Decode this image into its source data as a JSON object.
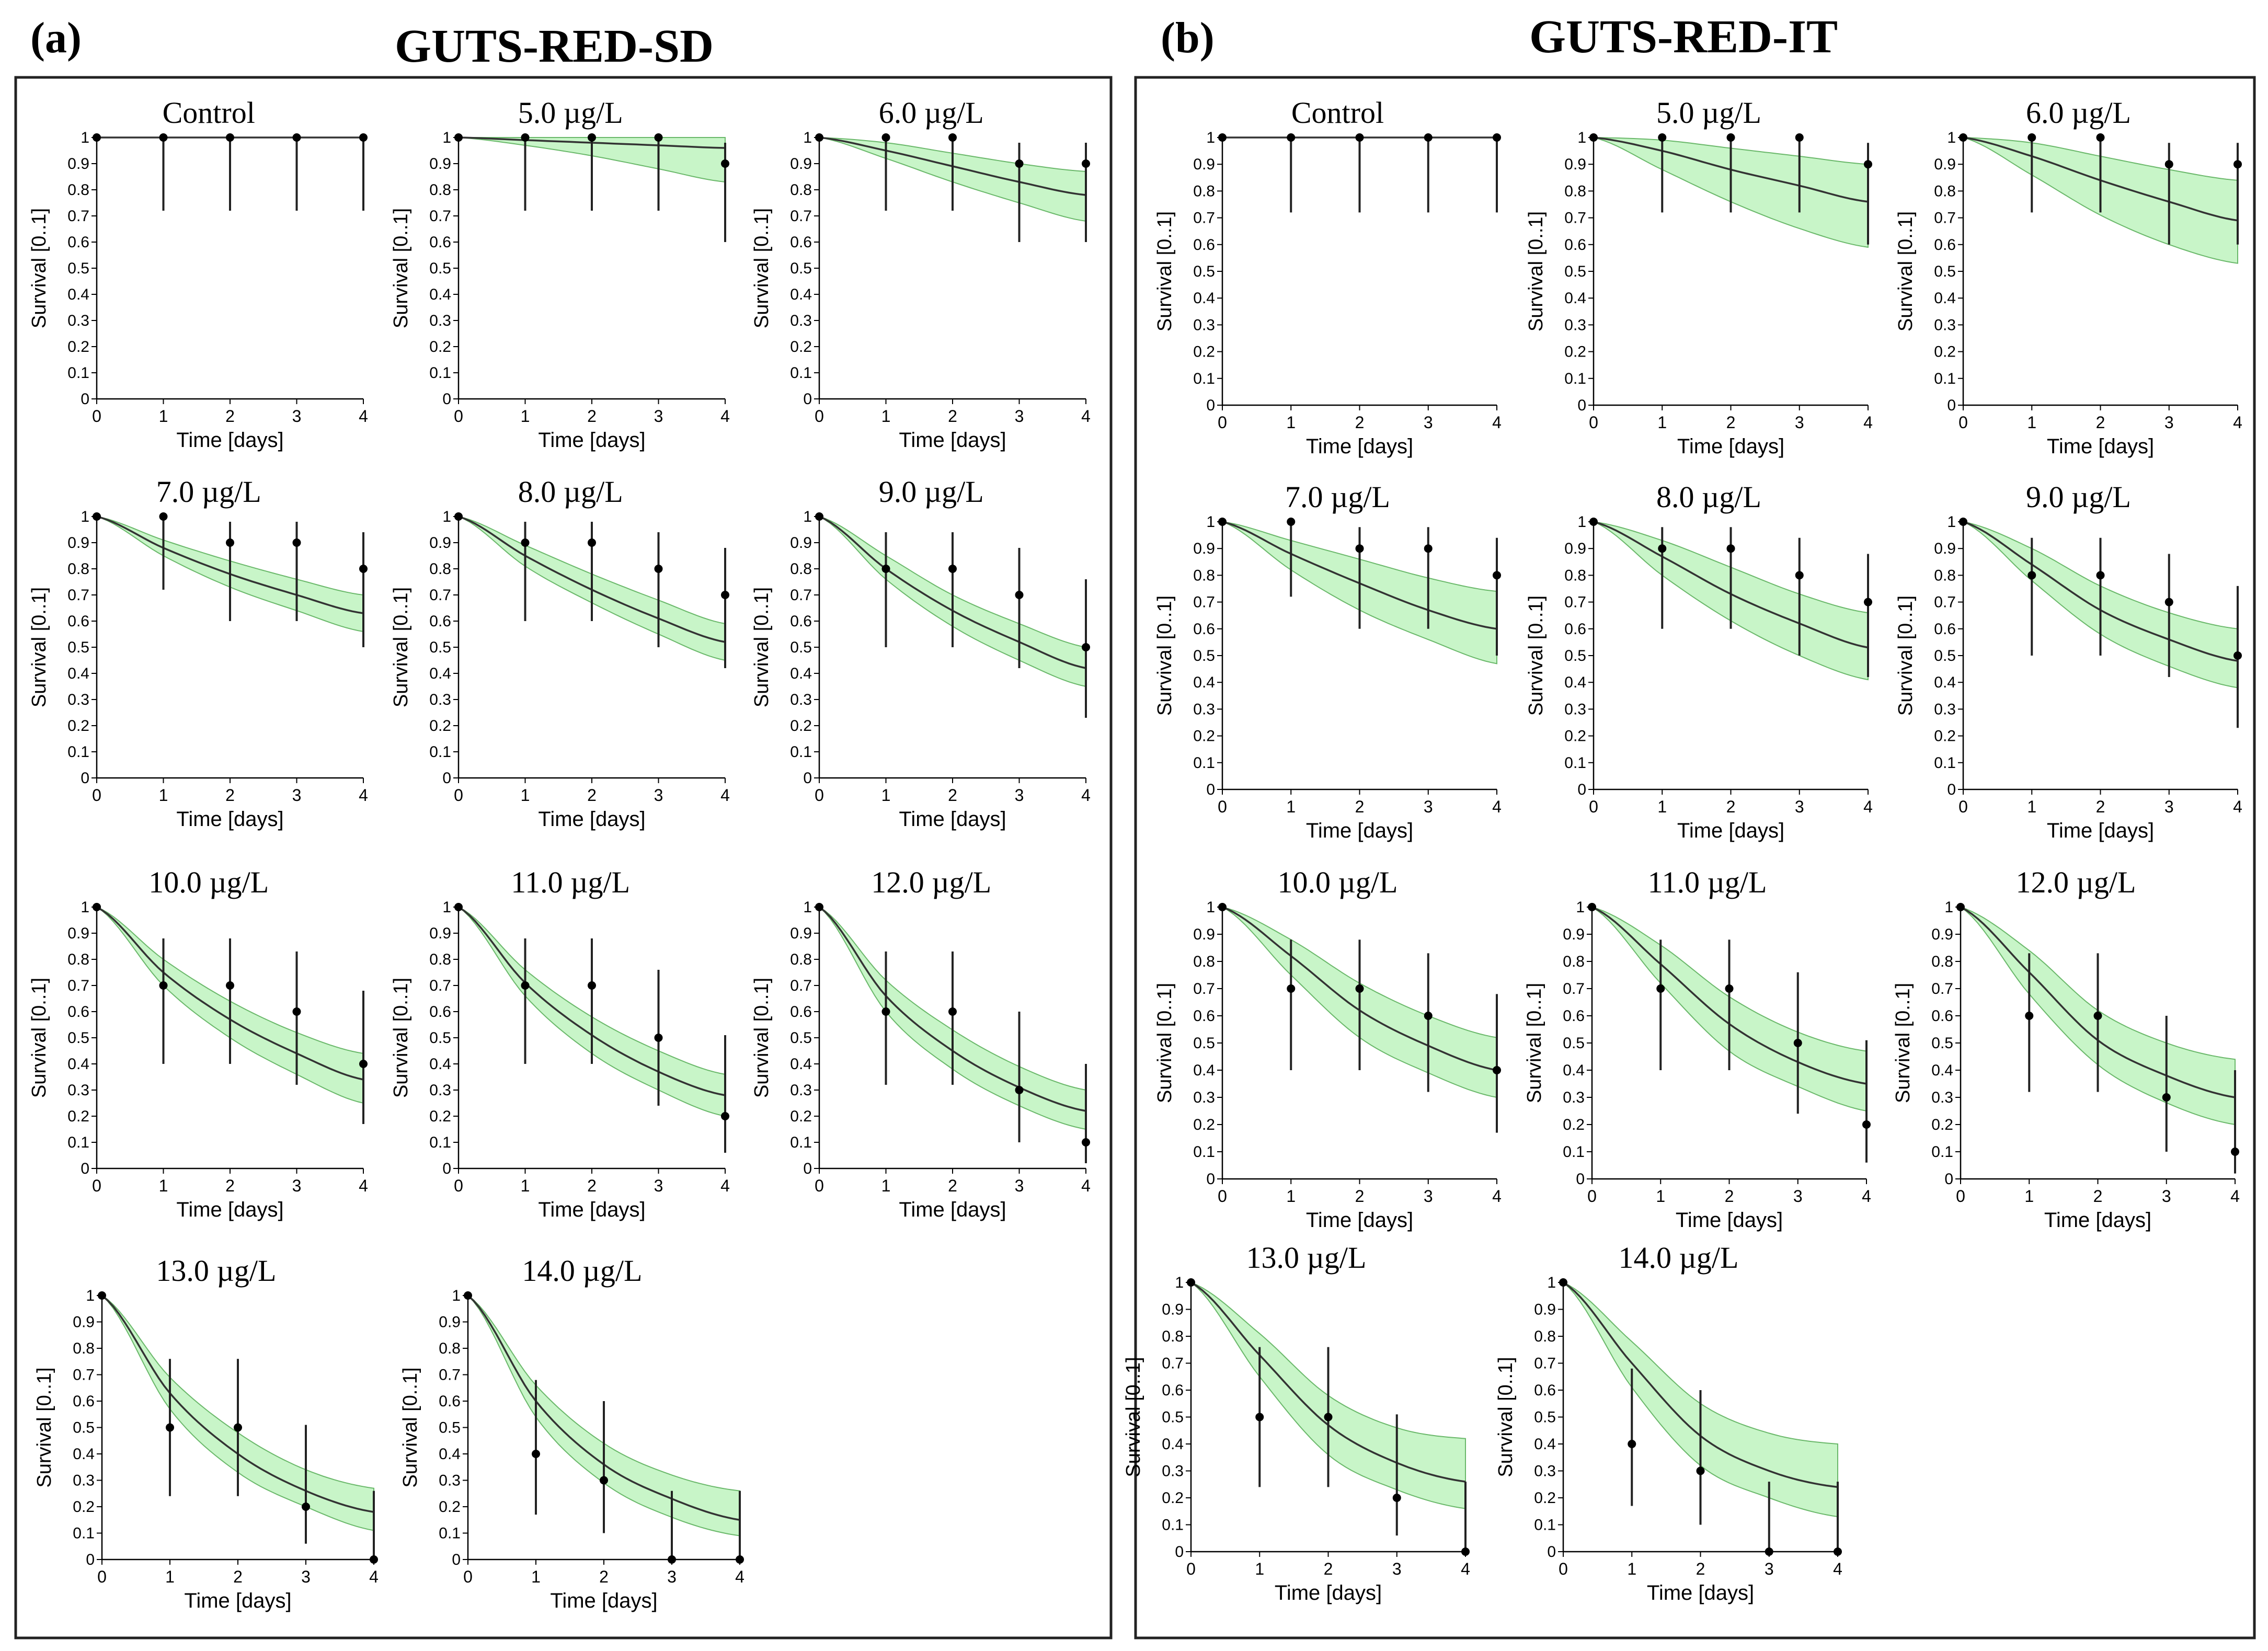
{
  "figure": {
    "panels": [
      {
        "letter": "(a)",
        "title": "GUTS-RED-SD"
      },
      {
        "letter": "(b)",
        "title": "GUTS-RED-IT"
      }
    ]
  },
  "chart_data": [
    {
      "type": "line",
      "panel": "a",
      "title": "Control",
      "xlabel": "Time [days]",
      "ylabel": "Survival [0..1]",
      "xlim": [
        0,
        4
      ],
      "ylim": [
        0,
        1
      ],
      "x": [
        0,
        1,
        2,
        3,
        4
      ],
      "observed": [
        1.0,
        1.0,
        1.0,
        1.0,
        1.0
      ],
      "ci_low": [
        1.0,
        0.72,
        0.72,
        0.72,
        0.72
      ],
      "ci_high": [
        1.0,
        1.0,
        1.0,
        1.0,
        1.0
      ],
      "fit": [
        1.0,
        1.0,
        1.0,
        1.0,
        1.0
      ],
      "band_low": [
        1.0,
        1.0,
        1.0,
        1.0,
        1.0
      ],
      "band_high": [
        1.0,
        1.0,
        1.0,
        1.0,
        1.0
      ]
    },
    {
      "type": "line",
      "panel": "a",
      "title": "5.0 µg/L",
      "xlabel": "Time [days]",
      "ylabel": "Survival [0..1]",
      "xlim": [
        0,
        4
      ],
      "ylim": [
        0,
        1
      ],
      "x": [
        0,
        1,
        2,
        3,
        4
      ],
      "observed": [
        1.0,
        1.0,
        1.0,
        1.0,
        0.9
      ],
      "ci_low": [
        1.0,
        0.72,
        0.72,
        0.72,
        0.6
      ],
      "ci_high": [
        1.0,
        1.0,
        1.0,
        1.0,
        0.98
      ],
      "fit": [
        1.0,
        0.99,
        0.98,
        0.97,
        0.96
      ],
      "band_low": [
        1.0,
        0.97,
        0.93,
        0.88,
        0.83
      ],
      "band_high": [
        1.0,
        1.0,
        1.0,
        1.0,
        1.0
      ]
    },
    {
      "type": "line",
      "panel": "a",
      "title": "6.0 µg/L",
      "xlabel": "Time [days]",
      "ylabel": "Survival [0..1]",
      "xlim": [
        0,
        4
      ],
      "ylim": [
        0,
        1
      ],
      "x": [
        0,
        1,
        2,
        3,
        4
      ],
      "observed": [
        1.0,
        1.0,
        1.0,
        0.9,
        0.9
      ],
      "ci_low": [
        1.0,
        0.72,
        0.72,
        0.6,
        0.6
      ],
      "ci_high": [
        1.0,
        1.0,
        1.0,
        0.98,
        0.98
      ],
      "fit": [
        1.0,
        0.95,
        0.89,
        0.83,
        0.78
      ],
      "band_low": [
        1.0,
        0.92,
        0.83,
        0.75,
        0.68
      ],
      "band_high": [
        1.0,
        0.98,
        0.94,
        0.9,
        0.87
      ]
    },
    {
      "type": "line",
      "panel": "a",
      "title": "7.0 µg/L",
      "xlabel": "Time [days]",
      "ylabel": "Survival [0..1]",
      "xlim": [
        0,
        4
      ],
      "ylim": [
        0,
        1
      ],
      "x": [
        0,
        1,
        2,
        3,
        4
      ],
      "observed": [
        1.0,
        1.0,
        0.9,
        0.9,
        0.8
      ],
      "ci_low": [
        1.0,
        0.72,
        0.6,
        0.6,
        0.5
      ],
      "ci_high": [
        1.0,
        1.0,
        0.98,
        0.98,
        0.94
      ],
      "fit": [
        1.0,
        0.88,
        0.78,
        0.7,
        0.63
      ],
      "band_low": [
        1.0,
        0.85,
        0.73,
        0.64,
        0.56
      ],
      "band_high": [
        1.0,
        0.91,
        0.83,
        0.76,
        0.7
      ]
    },
    {
      "type": "line",
      "panel": "a",
      "title": "8.0 µg/L",
      "xlabel": "Time [days]",
      "ylabel": "Survival [0..1]",
      "xlim": [
        0,
        4
      ],
      "ylim": [
        0,
        1
      ],
      "x": [
        0,
        1,
        2,
        3,
        4
      ],
      "observed": [
        1.0,
        0.9,
        0.9,
        0.8,
        0.7
      ],
      "ci_low": [
        1.0,
        0.6,
        0.6,
        0.5,
        0.42
      ],
      "ci_high": [
        1.0,
        0.98,
        0.98,
        0.94,
        0.88
      ],
      "fit": [
        1.0,
        0.85,
        0.72,
        0.61,
        0.52
      ],
      "band_low": [
        1.0,
        0.81,
        0.67,
        0.55,
        0.45
      ],
      "band_high": [
        1.0,
        0.89,
        0.78,
        0.68,
        0.59
      ]
    },
    {
      "type": "line",
      "panel": "a",
      "title": "9.0 µg/L",
      "xlabel": "Time [days]",
      "ylabel": "Survival [0..1]",
      "xlim": [
        0,
        4
      ],
      "ylim": [
        0,
        1
      ],
      "x": [
        0,
        1,
        2,
        3,
        4
      ],
      "observed": [
        1.0,
        0.8,
        0.8,
        0.7,
        0.5
      ],
      "ci_low": [
        1.0,
        0.5,
        0.5,
        0.42,
        0.23
      ],
      "ci_high": [
        1.0,
        0.94,
        0.94,
        0.88,
        0.76
      ],
      "fit": [
        1.0,
        0.8,
        0.64,
        0.52,
        0.42
      ],
      "band_low": [
        1.0,
        0.76,
        0.58,
        0.45,
        0.35
      ],
      "band_high": [
        1.0,
        0.85,
        0.7,
        0.59,
        0.5
      ]
    },
    {
      "type": "line",
      "panel": "a",
      "title": "10.0 µg/L",
      "xlabel": "Time [days]",
      "ylabel": "Survival [0..1]",
      "xlim": [
        0,
        4
      ],
      "ylim": [
        0,
        1
      ],
      "x": [
        0,
        1,
        2,
        3,
        4
      ],
      "observed": [
        1.0,
        0.7,
        0.7,
        0.6,
        0.4
      ],
      "ci_low": [
        1.0,
        0.4,
        0.4,
        0.32,
        0.17
      ],
      "ci_high": [
        1.0,
        0.88,
        0.88,
        0.83,
        0.68
      ],
      "fit": [
        1.0,
        0.75,
        0.57,
        0.44,
        0.34
      ],
      "band_low": [
        1.0,
        0.7,
        0.5,
        0.36,
        0.25
      ],
      "band_high": [
        1.0,
        0.8,
        0.64,
        0.52,
        0.44
      ]
    },
    {
      "type": "line",
      "panel": "a",
      "title": "11.0 µg/L",
      "xlabel": "Time [days]",
      "ylabel": "Survival [0..1]",
      "xlim": [
        0,
        4
      ],
      "ylim": [
        0,
        1
      ],
      "x": [
        0,
        1,
        2,
        3,
        4
      ],
      "observed": [
        1.0,
        0.7,
        0.7,
        0.5,
        0.2
      ],
      "ci_low": [
        1.0,
        0.4,
        0.4,
        0.24,
        0.06
      ],
      "ci_high": [
        1.0,
        0.88,
        0.88,
        0.76,
        0.51
      ],
      "fit": [
        1.0,
        0.71,
        0.51,
        0.37,
        0.28
      ],
      "band_low": [
        1.0,
        0.66,
        0.44,
        0.3,
        0.2
      ],
      "band_high": [
        1.0,
        0.76,
        0.58,
        0.45,
        0.36
      ]
    },
    {
      "type": "line",
      "panel": "a",
      "title": "12.0 µg/L",
      "xlabel": "Time [days]",
      "ylabel": "Survival [0..1]",
      "xlim": [
        0,
        4
      ],
      "ylim": [
        0,
        1
      ],
      "x": [
        0,
        1,
        2,
        3,
        4
      ],
      "observed": [
        1.0,
        0.6,
        0.6,
        0.3,
        0.1
      ],
      "ci_low": [
        1.0,
        0.32,
        0.32,
        0.1,
        0.02
      ],
      "ci_high": [
        1.0,
        0.83,
        0.83,
        0.6,
        0.4
      ],
      "fit": [
        1.0,
        0.66,
        0.45,
        0.31,
        0.22
      ],
      "band_low": [
        1.0,
        0.6,
        0.38,
        0.24,
        0.15
      ],
      "band_high": [
        1.0,
        0.72,
        0.53,
        0.39,
        0.3
      ]
    },
    {
      "type": "line",
      "panel": "a",
      "title": "13.0 µg/L",
      "xlabel": "Time [days]",
      "ylabel": "Survival [0..1]",
      "xlim": [
        0,
        4
      ],
      "ylim": [
        0,
        1
      ],
      "x": [
        0,
        1,
        2,
        3,
        4
      ],
      "observed": [
        1.0,
        0.5,
        0.5,
        0.2,
        0.0
      ],
      "ci_low": [
        1.0,
        0.24,
        0.24,
        0.06,
        0.0
      ],
      "ci_high": [
        1.0,
        0.76,
        0.76,
        0.51,
        0.26
      ],
      "fit": [
        1.0,
        0.63,
        0.4,
        0.26,
        0.18
      ],
      "band_low": [
        1.0,
        0.57,
        0.33,
        0.2,
        0.11
      ],
      "band_high": [
        1.0,
        0.69,
        0.48,
        0.34,
        0.27
      ]
    },
    {
      "type": "line",
      "panel": "a",
      "title": "14.0 µg/L",
      "xlabel": "Time [days]",
      "ylabel": "Survival [0..1]",
      "xlim": [
        0,
        4
      ],
      "ylim": [
        0,
        1
      ],
      "x": [
        0,
        1,
        2,
        3,
        4
      ],
      "observed": [
        1.0,
        0.4,
        0.3,
        0.0,
        0.0
      ],
      "ci_low": [
        1.0,
        0.17,
        0.1,
        0.0,
        0.0
      ],
      "ci_high": [
        1.0,
        0.68,
        0.6,
        0.26,
        0.26
      ],
      "fit": [
        1.0,
        0.6,
        0.36,
        0.23,
        0.15
      ],
      "band_low": [
        1.0,
        0.54,
        0.29,
        0.16,
        0.09
      ],
      "band_high": [
        1.0,
        0.66,
        0.44,
        0.32,
        0.26
      ]
    },
    {
      "type": "line",
      "panel": "b",
      "title": "Control",
      "xlabel": "Time [days]",
      "ylabel": "Survival [0..1]",
      "xlim": [
        0,
        4
      ],
      "ylim": [
        0,
        1
      ],
      "x": [
        0,
        1,
        2,
        3,
        4
      ],
      "observed": [
        1.0,
        1.0,
        1.0,
        1.0,
        1.0
      ],
      "ci_low": [
        1.0,
        0.72,
        0.72,
        0.72,
        0.72
      ],
      "ci_high": [
        1.0,
        1.0,
        1.0,
        1.0,
        1.0
      ],
      "fit": [
        1.0,
        1.0,
        1.0,
        1.0,
        1.0
      ],
      "band_low": [
        1.0,
        1.0,
        1.0,
        1.0,
        1.0
      ],
      "band_high": [
        1.0,
        1.0,
        1.0,
        1.0,
        1.0
      ]
    },
    {
      "type": "line",
      "panel": "b",
      "title": "5.0 µg/L",
      "xlabel": "Time [days]",
      "ylabel": "Survival [0..1]",
      "xlim": [
        0,
        4
      ],
      "ylim": [
        0,
        1
      ],
      "x": [
        0,
        1,
        2,
        3,
        4
      ],
      "observed": [
        1.0,
        1.0,
        1.0,
        1.0,
        0.9
      ],
      "ci_low": [
        1.0,
        0.72,
        0.72,
        0.72,
        0.6
      ],
      "ci_high": [
        1.0,
        1.0,
        1.0,
        1.0,
        0.98
      ],
      "fit": [
        1.0,
        0.95,
        0.88,
        0.82,
        0.76
      ],
      "band_low": [
        1.0,
        0.88,
        0.76,
        0.66,
        0.59
      ],
      "band_high": [
        1.0,
        0.99,
        0.96,
        0.93,
        0.9
      ]
    },
    {
      "type": "line",
      "panel": "b",
      "title": "6.0 µg/L",
      "xlabel": "Time [days]",
      "ylabel": "Survival [0..1]",
      "xlim": [
        0,
        4
      ],
      "ylim": [
        0,
        1
      ],
      "x": [
        0,
        1,
        2,
        3,
        4
      ],
      "observed": [
        1.0,
        1.0,
        1.0,
        0.9,
        0.9
      ],
      "ci_low": [
        1.0,
        0.72,
        0.72,
        0.6,
        0.6
      ],
      "ci_high": [
        1.0,
        1.0,
        1.0,
        0.98,
        0.98
      ],
      "fit": [
        1.0,
        0.93,
        0.84,
        0.76,
        0.69
      ],
      "band_low": [
        1.0,
        0.86,
        0.71,
        0.6,
        0.53
      ],
      "band_high": [
        1.0,
        0.98,
        0.93,
        0.88,
        0.84
      ]
    },
    {
      "type": "line",
      "panel": "b",
      "title": "7.0 µg/L",
      "xlabel": "Time [days]",
      "ylabel": "Survival [0..1]",
      "xlim": [
        0,
        4
      ],
      "ylim": [
        0,
        1
      ],
      "x": [
        0,
        1,
        2,
        3,
        4
      ],
      "observed": [
        1.0,
        1.0,
        0.9,
        0.9,
        0.8
      ],
      "ci_low": [
        1.0,
        0.72,
        0.6,
        0.6,
        0.5
      ],
      "ci_high": [
        1.0,
        1.0,
        0.98,
        0.98,
        0.94
      ],
      "fit": [
        1.0,
        0.88,
        0.77,
        0.67,
        0.6
      ],
      "band_low": [
        1.0,
        0.82,
        0.67,
        0.56,
        0.47
      ],
      "band_high": [
        1.0,
        0.93,
        0.86,
        0.79,
        0.74
      ]
    },
    {
      "type": "line",
      "panel": "b",
      "title": "8.0 µg/L",
      "xlabel": "Time [days]",
      "ylabel": "Survival [0..1]",
      "xlim": [
        0,
        4
      ],
      "ylim": [
        0,
        1
      ],
      "x": [
        0,
        1,
        2,
        3,
        4
      ],
      "observed": [
        1.0,
        0.9,
        0.9,
        0.8,
        0.7
      ],
      "ci_low": [
        1.0,
        0.6,
        0.6,
        0.5,
        0.42
      ],
      "ci_high": [
        1.0,
        0.98,
        0.98,
        0.94,
        0.88
      ],
      "fit": [
        1.0,
        0.87,
        0.73,
        0.62,
        0.53
      ],
      "band_low": [
        1.0,
        0.8,
        0.63,
        0.5,
        0.41
      ],
      "band_high": [
        1.0,
        0.93,
        0.83,
        0.73,
        0.66
      ]
    },
    {
      "type": "line",
      "panel": "b",
      "title": "9.0 µg/L",
      "xlabel": "Time [days]",
      "ylabel": "Survival [0..1]",
      "xlim": [
        0,
        4
      ],
      "ylim": [
        0,
        1
      ],
      "x": [
        0,
        1,
        2,
        3,
        4
      ],
      "observed": [
        1.0,
        0.8,
        0.8,
        0.7,
        0.5
      ],
      "ci_low": [
        1.0,
        0.5,
        0.5,
        0.42,
        0.23
      ],
      "ci_high": [
        1.0,
        0.94,
        0.94,
        0.88,
        0.76
      ],
      "fit": [
        1.0,
        0.84,
        0.67,
        0.56,
        0.48
      ],
      "band_low": [
        1.0,
        0.78,
        0.58,
        0.46,
        0.38
      ],
      "band_high": [
        1.0,
        0.9,
        0.76,
        0.66,
        0.6
      ]
    },
    {
      "type": "line",
      "panel": "b",
      "title": "10.0 µg/L",
      "xlabel": "Time [days]",
      "ylabel": "Survival [0..1]",
      "xlim": [
        0,
        4
      ],
      "ylim": [
        0,
        1
      ],
      "x": [
        0,
        1,
        2,
        3,
        4
      ],
      "observed": [
        1.0,
        0.7,
        0.7,
        0.6,
        0.4
      ],
      "ci_low": [
        1.0,
        0.4,
        0.4,
        0.32,
        0.17
      ],
      "ci_high": [
        1.0,
        0.88,
        0.88,
        0.83,
        0.68
      ],
      "fit": [
        1.0,
        0.82,
        0.62,
        0.49,
        0.4
      ],
      "band_low": [
        1.0,
        0.75,
        0.52,
        0.39,
        0.3
      ],
      "band_high": [
        1.0,
        0.88,
        0.72,
        0.6,
        0.52
      ]
    },
    {
      "type": "line",
      "panel": "b",
      "title": "11.0 µg/L",
      "xlabel": "Time [days]",
      "ylabel": "Survival [0..1]",
      "xlim": [
        0,
        4
      ],
      "ylim": [
        0,
        1
      ],
      "x": [
        0,
        1,
        2,
        3,
        4
      ],
      "observed": [
        1.0,
        0.7,
        0.7,
        0.5,
        0.2
      ],
      "ci_low": [
        1.0,
        0.4,
        0.4,
        0.24,
        0.06
      ],
      "ci_high": [
        1.0,
        0.88,
        0.88,
        0.76,
        0.51
      ],
      "fit": [
        1.0,
        0.79,
        0.57,
        0.43,
        0.35
      ],
      "band_low": [
        1.0,
        0.72,
        0.47,
        0.34,
        0.25
      ],
      "band_high": [
        1.0,
        0.86,
        0.67,
        0.54,
        0.47
      ]
    },
    {
      "type": "line",
      "panel": "b",
      "title": "12.0 µg/L",
      "xlabel": "Time [days]",
      "ylabel": "Survival [0..1]",
      "xlim": [
        0,
        4
      ],
      "ylim": [
        0,
        1
      ],
      "x": [
        0,
        1,
        2,
        3,
        4
      ],
      "observed": [
        1.0,
        0.6,
        0.6,
        0.3,
        0.1
      ],
      "ci_low": [
        1.0,
        0.32,
        0.32,
        0.1,
        0.02
      ],
      "ci_high": [
        1.0,
        0.83,
        0.83,
        0.6,
        0.4
      ],
      "fit": [
        1.0,
        0.76,
        0.51,
        0.38,
        0.3
      ],
      "band_low": [
        1.0,
        0.68,
        0.42,
        0.28,
        0.2
      ],
      "band_high": [
        1.0,
        0.84,
        0.62,
        0.5,
        0.44
      ]
    },
    {
      "type": "line",
      "panel": "b",
      "title": "13.0 µg/L",
      "xlabel": "Time [days]",
      "ylabel": "Survival [0..1]",
      "xlim": [
        0,
        4
      ],
      "ylim": [
        0,
        1
      ],
      "x": [
        0,
        1,
        2,
        3,
        4
      ],
      "observed": [
        1.0,
        0.5,
        0.5,
        0.2,
        0.0
      ],
      "ci_low": [
        1.0,
        0.24,
        0.24,
        0.06,
        0.0
      ],
      "ci_high": [
        1.0,
        0.76,
        0.76,
        0.51,
        0.26
      ],
      "fit": [
        1.0,
        0.73,
        0.47,
        0.33,
        0.26
      ],
      "band_low": [
        1.0,
        0.65,
        0.36,
        0.23,
        0.16
      ],
      "band_high": [
        1.0,
        0.81,
        0.58,
        0.46,
        0.42
      ]
    },
    {
      "type": "line",
      "panel": "b",
      "title": "14.0 µg/L",
      "xlabel": "Time [days]",
      "ylabel": "Survival [0..1]",
      "xlim": [
        0,
        4
      ],
      "ylim": [
        0,
        1
      ],
      "x": [
        0,
        1,
        2,
        3,
        4
      ],
      "observed": [
        1.0,
        0.4,
        0.3,
        0.0,
        0.0
      ],
      "ci_low": [
        1.0,
        0.17,
        0.1,
        0.0,
        0.0
      ],
      "ci_high": [
        1.0,
        0.68,
        0.6,
        0.26,
        0.26
      ],
      "fit": [
        1.0,
        0.7,
        0.43,
        0.3,
        0.24
      ],
      "band_low": [
        1.0,
        0.61,
        0.32,
        0.2,
        0.13
      ],
      "band_high": [
        1.0,
        0.78,
        0.55,
        0.44,
        0.4
      ]
    }
  ]
}
